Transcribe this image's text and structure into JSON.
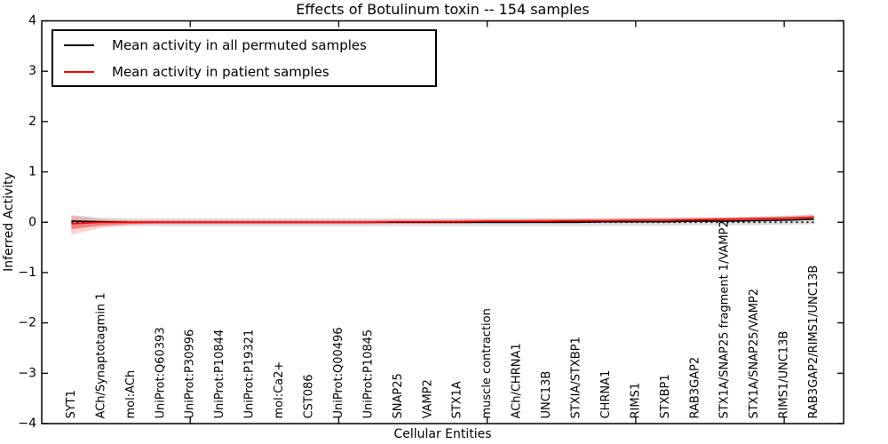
{
  "chart_data": {
    "type": "line",
    "title": "Effects of Botulinum toxin -- 154 samples",
    "xlabel": "Cellular Entities",
    "ylabel": "Inferred Activity",
    "ylim": [
      -4,
      4
    ],
    "ytick_labels": [
      "4",
      "3",
      "2",
      "1",
      "0",
      "−1",
      "−2",
      "−3",
      "−4"
    ],
    "ytick_values": [
      4,
      3,
      2,
      1,
      0,
      -1,
      -2,
      -3,
      -4
    ],
    "x_major_tick_positions": [
      5,
      10,
      15,
      20,
      25
    ],
    "grid": "off",
    "legend_position": "upper left",
    "categories": [
      "SYT1",
      "ACh/Synaptotagmin 1",
      "mol:ACh",
      "UniProt:Q60393",
      "UniProt:P30996",
      "UniProt:P10844",
      "UniProt:P19321",
      "mol:Ca2+",
      "CST086",
      "UniProt:Q00496",
      "UniProt:P10845",
      "SNAP25",
      "VAMP2",
      "STX1A",
      "muscle contraction",
      "ACh/CHRNA1",
      "UNC13B",
      "STXIA/STXBP1",
      "CHRNA1",
      "RIMS1",
      "STXBP1",
      "RAB3GAP2",
      "STX1A/SNAP25 fragment 1/VAMP2",
      "STX1A/SNAP25/VAMP2",
      "RIMS1/UNC13B",
      "RAB3GAP2/RIMS1/UNC13B"
    ],
    "series": [
      {
        "name": "Mean activity in all permuted samples",
        "color": "#000000",
        "style": "solid",
        "values": [
          0.02,
          0.01,
          0.0,
          0.0,
          0.0,
          0.0,
          0.0,
          0.0,
          0.0,
          0.0,
          0.0,
          0.0,
          0.0,
          0.0,
          0.0,
          0.0,
          0.0,
          0.0,
          0.01,
          0.01,
          0.01,
          0.02,
          0.02,
          0.03,
          0.04,
          0.06
        ]
      },
      {
        "name": "Mean activity in patient samples",
        "color": "#ff0000",
        "style": "solid",
        "values": [
          -0.03,
          0.0,
          0.0,
          0.0,
          0.0,
          0.0,
          0.0,
          0.0,
          0.0,
          0.0,
          0.0,
          0.01,
          0.01,
          0.01,
          0.02,
          0.02,
          0.02,
          0.03,
          0.03,
          0.04,
          0.04,
          0.05,
          0.06,
          0.07,
          0.08,
          0.1
        ]
      }
    ],
    "bands": [
      {
        "name": "permuted-samples-range",
        "color": "#000000",
        "alpha": 0.13,
        "upper": [
          0.14,
          0.09,
          0.08,
          0.08,
          0.08,
          0.08,
          0.08,
          0.08,
          0.08,
          0.08,
          0.08,
          0.08,
          0.08,
          0.08,
          0.08,
          0.08,
          0.08,
          0.08,
          0.08,
          0.09,
          0.09,
          0.1,
          0.1,
          0.11,
          0.13,
          0.16
        ],
        "lower": [
          -0.12,
          -0.08,
          -0.08,
          -0.08,
          -0.08,
          -0.08,
          -0.08,
          -0.08,
          -0.08,
          -0.08,
          -0.08,
          -0.08,
          -0.08,
          -0.08,
          -0.08,
          -0.08,
          -0.08,
          -0.08,
          -0.07,
          -0.07,
          -0.07,
          -0.06,
          -0.06,
          -0.06,
          -0.05,
          -0.04
        ]
      },
      {
        "name": "patient-samples-range-outer",
        "color": "#ff0000",
        "alpha": 0.18,
        "upper": [
          0.13,
          0.06,
          0.04,
          0.04,
          0.04,
          0.04,
          0.04,
          0.04,
          0.04,
          0.04,
          0.04,
          0.05,
          0.05,
          0.05,
          0.06,
          0.06,
          0.07,
          0.07,
          0.08,
          0.08,
          0.09,
          0.09,
          0.1,
          0.11,
          0.12,
          0.14
        ],
        "lower": [
          -0.25,
          -0.11,
          -0.05,
          -0.04,
          -0.04,
          -0.04,
          -0.04,
          -0.04,
          -0.04,
          -0.04,
          -0.04,
          -0.03,
          -0.03,
          -0.03,
          -0.02,
          -0.02,
          -0.02,
          -0.01,
          -0.01,
          -0.01,
          0.0,
          0.0,
          0.01,
          0.02,
          0.03,
          0.05
        ]
      },
      {
        "name": "patient-samples-range-inner",
        "color": "#ff0000",
        "alpha": 0.3,
        "upper": [
          0.05,
          0.03,
          0.03,
          0.03,
          0.03,
          0.03,
          0.03,
          0.03,
          0.03,
          0.03,
          0.03,
          0.03,
          0.03,
          0.04,
          0.04,
          0.04,
          0.05,
          0.05,
          0.05,
          0.06,
          0.06,
          0.07,
          0.07,
          0.08,
          0.09,
          0.12
        ],
        "lower": [
          -0.14,
          -0.06,
          -0.03,
          -0.02,
          -0.02,
          -0.02,
          -0.02,
          -0.02,
          -0.02,
          -0.02,
          -0.02,
          -0.01,
          -0.01,
          -0.01,
          -0.01,
          0.0,
          0.0,
          0.0,
          0.01,
          0.01,
          0.01,
          0.02,
          0.02,
          0.03,
          0.04,
          0.07
        ]
      }
    ],
    "zero_line": {
      "value": 0,
      "style": "dotted",
      "color": "#000000"
    }
  }
}
